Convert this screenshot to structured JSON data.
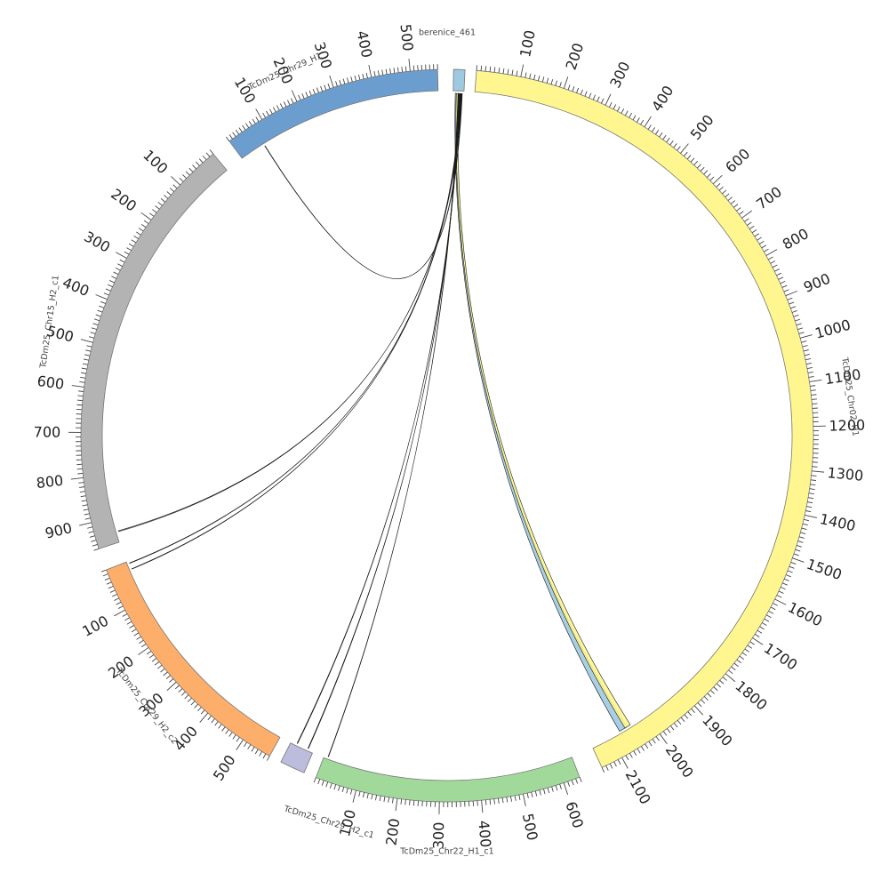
{
  "chart_data": {
    "type": "chord",
    "segments": [
      {
        "id": "berenice",
        "name": "berenice_461",
        "length": 20,
        "color": "#9ecae1",
        "ticks": []
      },
      {
        "id": "chr02_h1",
        "name": "TcDm25_Chr02_H1",
        "length": 2150,
        "color": "#fff68f",
        "ticks": [
          100,
          200,
          300,
          400,
          500,
          600,
          700,
          800,
          900,
          1000,
          1100,
          1200,
          1300,
          1400,
          1500,
          1600,
          1700,
          1800,
          1900,
          2000,
          2100
        ]
      },
      {
        "id": "chr22_h1_c1",
        "name": "TcDm25_Chr22_H1_c1",
        "length": 640,
        "color": "#a1d99b",
        "ticks": [
          100,
          200,
          300,
          400,
          500,
          600
        ]
      },
      {
        "id": "chr29_h2_c1",
        "name": "TcDm25_Chr29_H2_c1",
        "length": 40,
        "color": "#bcbddc",
        "ticks": []
      },
      {
        "id": "chr29_h2_c2",
        "name": "TcDm25_Chr29_H2_c2",
        "length": 570,
        "color": "#fdae6b",
        "ticks": [
          100,
          200,
          300,
          400,
          500
        ]
      },
      {
        "id": "chr15_h2_c1",
        "name": "TcDm25_Chr15_H2_c1",
        "length": 960,
        "color": "#b3b3b3",
        "ticks": [
          100,
          200,
          300,
          400,
          500,
          600,
          700,
          800,
          900
        ]
      },
      {
        "id": "chr29_h1",
        "name": "TcDm25_Chr29_H1",
        "length": 570,
        "color": "#6b9ecf",
        "ticks": [
          100,
          200,
          300,
          400,
          500
        ]
      }
    ],
    "links": [
      {
        "from": "berenice",
        "from_pos": [
          4,
          6
        ],
        "to": "chr02_h1",
        "to_pos": [
          2055,
          2075
        ],
        "color": "#9ecae1"
      },
      {
        "from": "berenice",
        "from_pos": [
          6,
          10
        ],
        "to": "chr02_h1",
        "to_pos": [
          2045,
          2060
        ],
        "color": "#fff68f"
      },
      {
        "from": "berenice",
        "from_pos": [
          9,
          10
        ],
        "to": "chr22_h1_c1",
        "to_pos": [
          10,
          11
        ],
        "color": "#a1d99b"
      },
      {
        "from": "berenice",
        "from_pos": [
          11,
          12
        ],
        "to": "chr29_h2_c1",
        "to_pos": [
          30,
          31
        ],
        "color": "#bcbddc"
      },
      {
        "from": "berenice",
        "from_pos": [
          12,
          13
        ],
        "to": "chr29_h2_c1",
        "to_pos": [
          10,
          11
        ],
        "color": "#bcbddc"
      },
      {
        "from": "berenice",
        "from_pos": [
          13,
          14
        ],
        "to": "chr29_h2_c2",
        "to_pos": [
          20,
          21
        ],
        "color": "#fdae6b"
      },
      {
        "from": "berenice",
        "from_pos": [
          14,
          15
        ],
        "to": "chr29_h2_c2",
        "to_pos": [
          5,
          6
        ],
        "color": "#fdae6b"
      },
      {
        "from": "berenice",
        "from_pos": [
          15,
          16
        ],
        "to": "chr15_h2_c1",
        "to_pos": [
          934,
          936
        ],
        "color": "#b3b3b3"
      },
      {
        "from": "berenice",
        "from_pos": [
          16,
          17
        ],
        "to": "chr29_h1",
        "to_pos": [
          70,
          71
        ],
        "color": "#6b9ecf"
      }
    ]
  }
}
